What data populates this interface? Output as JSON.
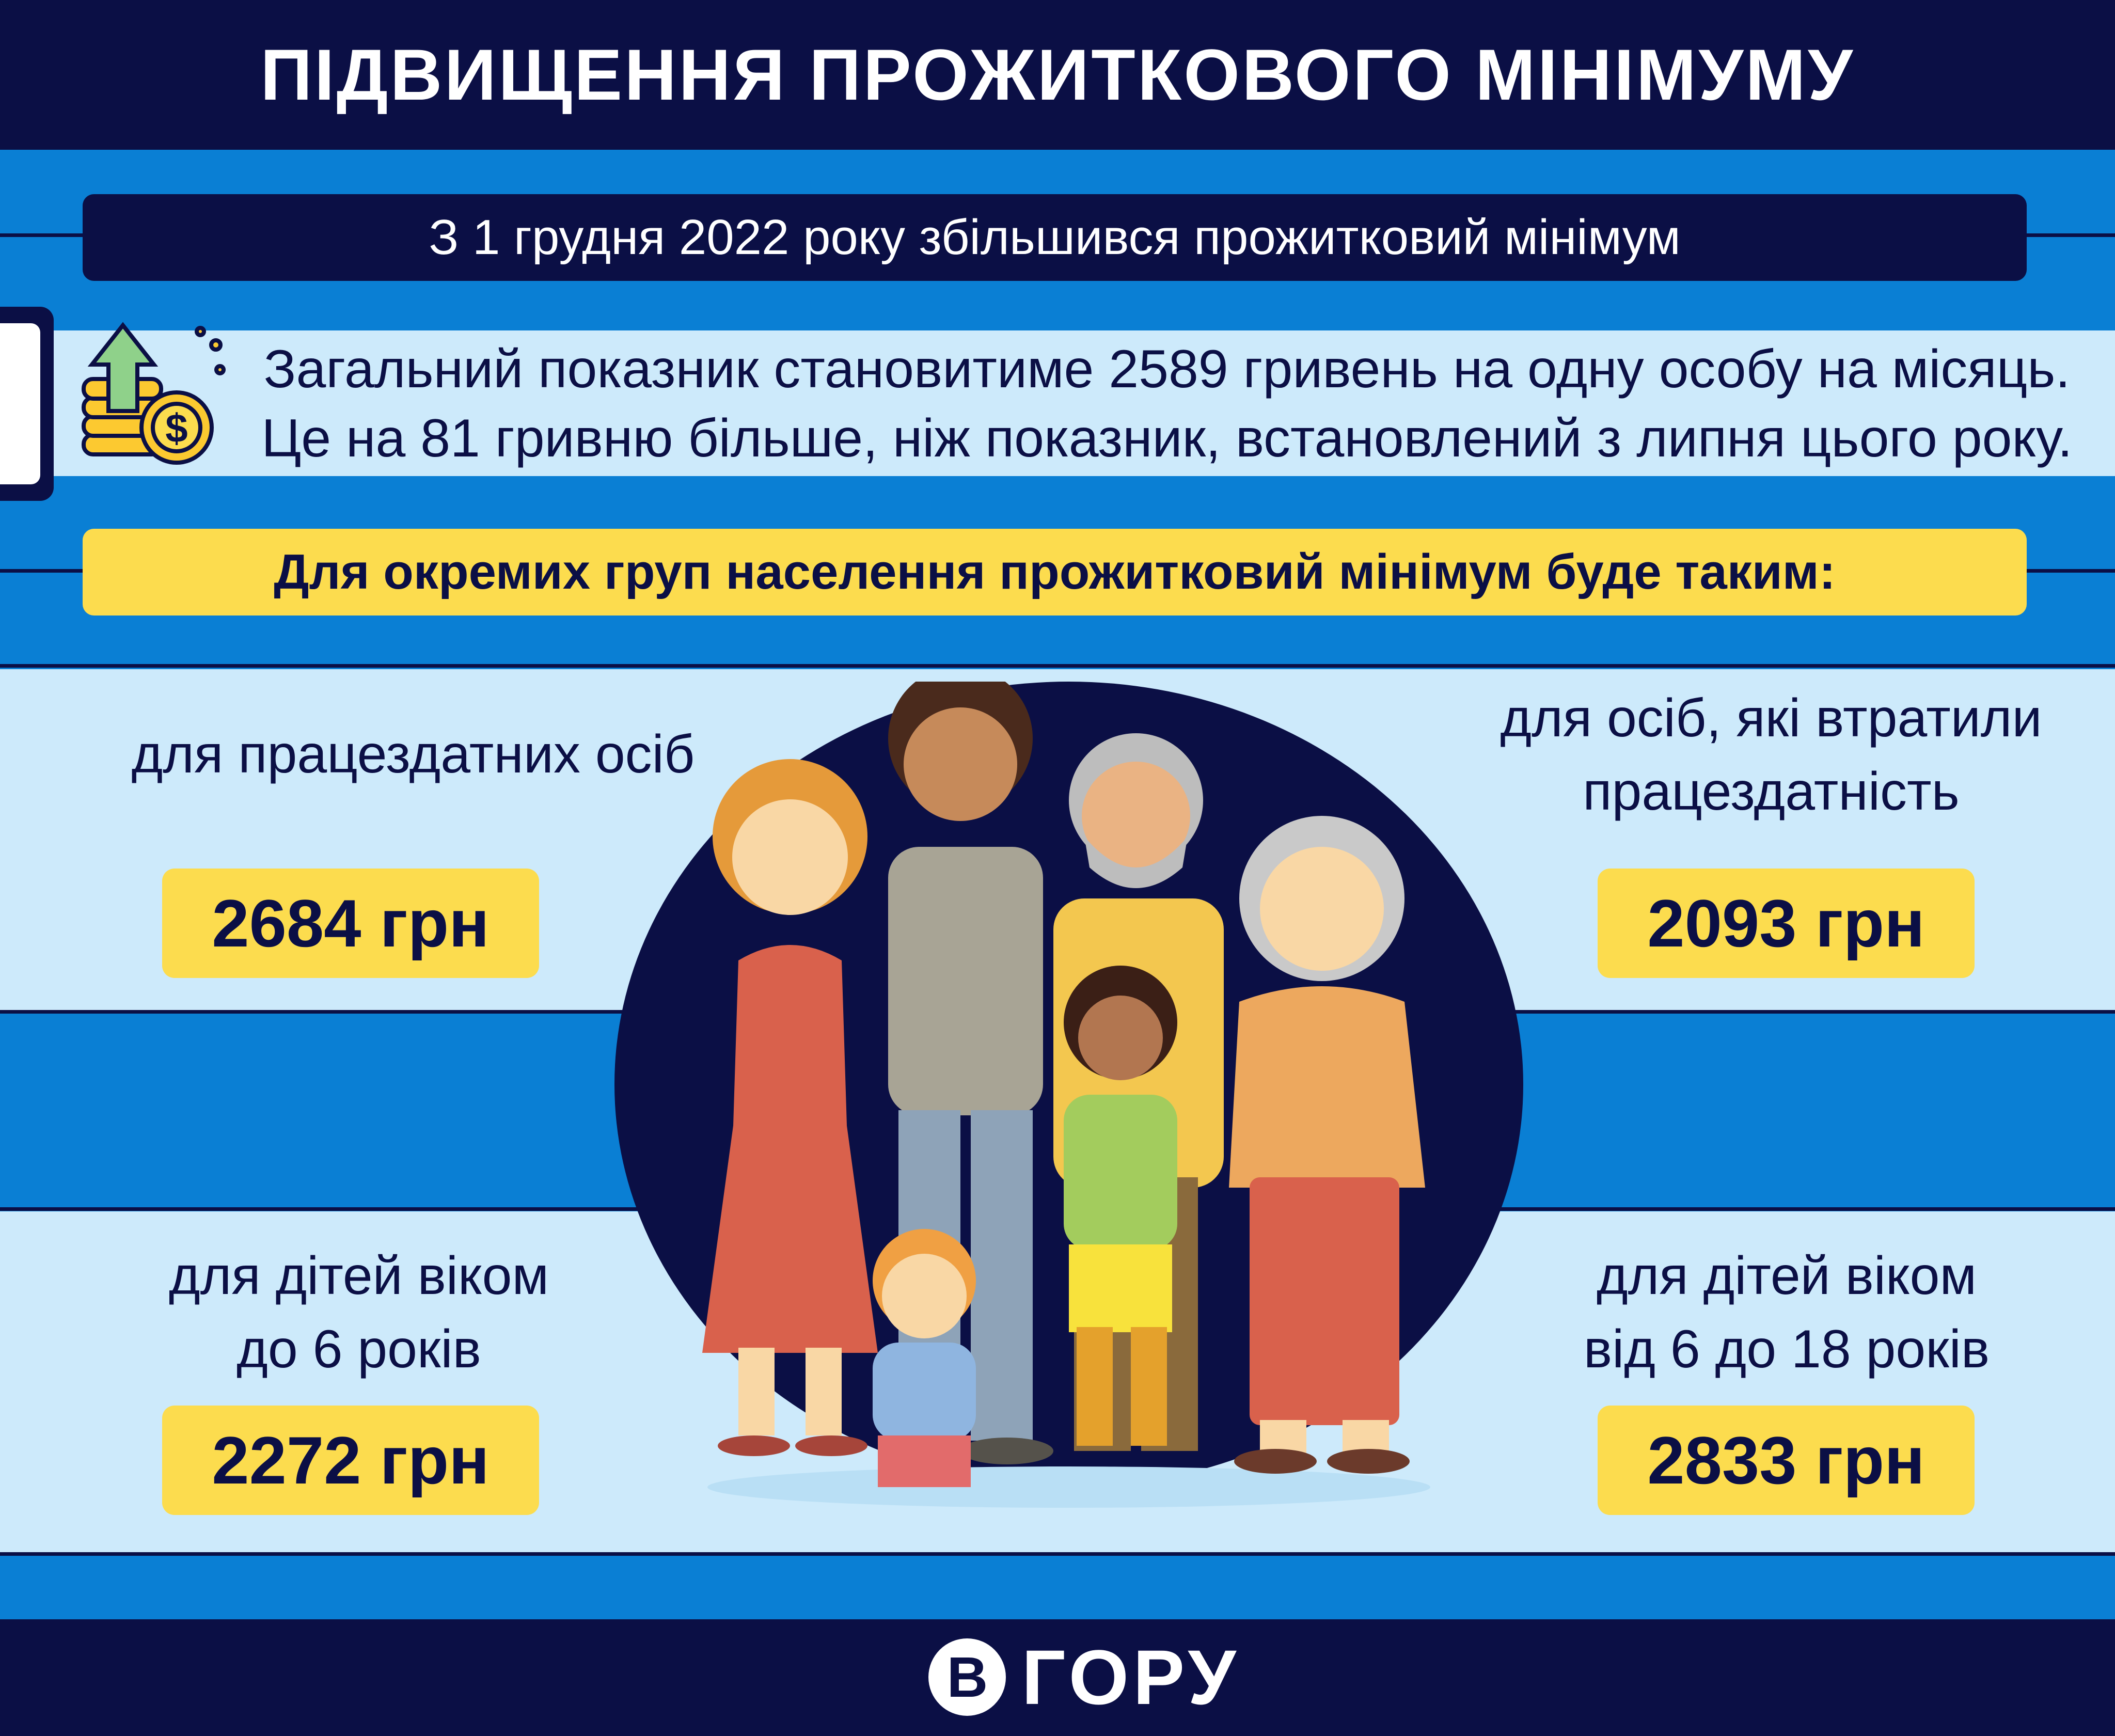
{
  "header": {
    "title": "ПІДВИЩЕННЯ ПРОЖИТКОВОГО МІНІМУМУ"
  },
  "subtitle": "З 1 грудня 2022 року збільшився прожитковий мінімум",
  "info": {
    "icon": "coins-up-arrow-icon",
    "line1": "Загальний показник становитиме 2589 гривень на одну особу на місяць.",
    "line2": "Це на 81 гривню більше, ніж показник, встановлений з липня цього року."
  },
  "banner": "Для окремих груп населення прожитковий мінімум буде таким:",
  "groups": {
    "able": {
      "line1": "для працездатних осіб",
      "value": "2684 грн"
    },
    "disabled": {
      "line1": "для осіб, які втратили",
      "line2": "працездатність",
      "value": "2093 грн"
    },
    "under6": {
      "line1": "для дітей віком",
      "line2": "до 6 років",
      "value": "2272 грн"
    },
    "teen": {
      "line1": "для дітей віком",
      "line2": "від 6 до 18 років",
      "value": "2833 грн"
    }
  },
  "illustration": {
    "icon": "family-illustration"
  },
  "footer": {
    "logo_letter": "В",
    "logo_word": "ГОРУ"
  },
  "colors": {
    "navy": "#0b0f45",
    "blue": "#0a7fd4",
    "light": "#cdeafb",
    "yellow": "#fcdc4e"
  }
}
